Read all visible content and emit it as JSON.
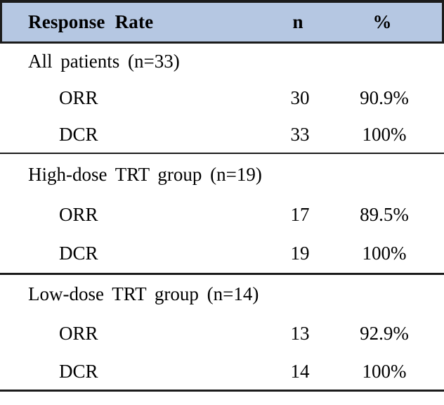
{
  "table": {
    "title": "Response Rate",
    "header": {
      "label": "Response Rate",
      "col_n": "n",
      "col_pct": "%"
    },
    "sections": [
      {
        "group": "All patients (n=33)",
        "rows": [
          {
            "label": "ORR",
            "n": "30",
            "pct": "90.9%"
          },
          {
            "label": "DCR",
            "n": "33",
            "pct": "100%"
          }
        ]
      },
      {
        "group": "High-dose TRT group (n=19)",
        "rows": [
          {
            "label": "ORR",
            "n": "17",
            "pct": "89.5%"
          },
          {
            "label": "DCR",
            "n": "19",
            "pct": "100%"
          }
        ]
      },
      {
        "group": "Low-dose TRT group (n=14)",
        "rows": [
          {
            "label": "ORR",
            "n": "13",
            "pct": "92.9%"
          },
          {
            "label": "DCR",
            "n": "14",
            "pct": "100%"
          }
        ]
      }
    ],
    "colors": {
      "header_bg": "#b5c7e2",
      "border": "#1b1b1b",
      "text": "#000000"
    }
  },
  "chart_data": {
    "type": "table",
    "title": "Response Rate",
    "columns": [
      "Response Rate",
      "n",
      "%"
    ],
    "rows": [
      [
        "All patients (n=33)",
        "",
        ""
      ],
      [
        "ORR",
        "30",
        "90.9%"
      ],
      [
        "DCR",
        "33",
        "100%"
      ],
      [
        "High-dose TRT group (n=19)",
        "",
        ""
      ],
      [
        "ORR",
        "17",
        "89.5%"
      ],
      [
        "DCR",
        "19",
        "100%"
      ],
      [
        "Low-dose TRT group (n=14)",
        "",
        ""
      ],
      [
        "ORR",
        "13",
        "92.9%"
      ],
      [
        "DCR",
        "14",
        "100%"
      ]
    ]
  }
}
